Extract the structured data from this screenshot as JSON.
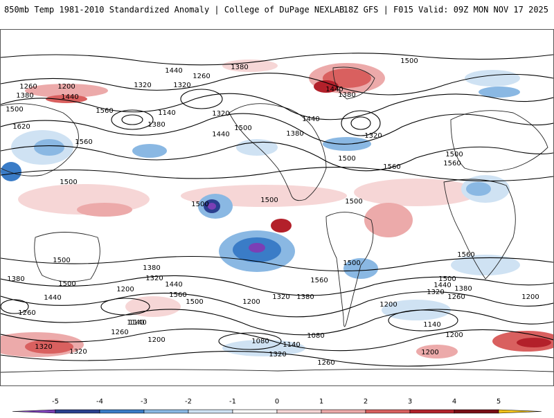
{
  "header": {
    "title": "850mb Temp 1981-2010 Standardized Anomaly | College of DuPage NEXLAB",
    "model_info": "18Z GFS | F015 Valid: 09Z MON NOV 17 2025"
  },
  "colors": {
    "neg5": "#7b3fb5",
    "neg4": "#2a3f8f",
    "neg3": "#3a7cc7",
    "neg2": "#8ab8e3",
    "neg1": "#cfe2f3",
    "zero": "#ffffff",
    "pos1": "#f6d6d6",
    "pos2": "#ecaaaa",
    "pos3": "#d9605f",
    "pos4": "#b3202a",
    "pos5": "#7a0d14",
    "extreme": "#f2c21a",
    "contour": "#000000",
    "coast": "#222222"
  },
  "legend": {
    "ticks": [
      "-5",
      "-4",
      "-3",
      "-2",
      "-1",
      "0",
      "1",
      "2",
      "3",
      "4",
      "5"
    ]
  },
  "contour_labels": [
    "1440",
    "1380",
    "1260",
    "1200",
    "1320",
    "1500",
    "1560",
    "1440",
    "1620",
    "1380",
    "1560",
    "1260",
    "1320",
    "1140",
    "1380",
    "1440",
    "1500",
    "1320",
    "1380",
    "1440",
    "1320",
    "1500",
    "1440",
    "1380",
    "1500",
    "1560",
    "1500",
    "1560",
    "1500",
    "1500",
    "1500",
    "1500",
    "1500",
    "1560",
    "1500",
    "1380",
    "1320",
    "1380",
    "1500",
    "1440",
    "1200",
    "1560",
    "1500",
    "1200",
    "1140",
    "1320",
    "1380",
    "1440",
    "1560",
    "1500",
    "1440",
    "1380",
    "1320",
    "1260",
    "1200",
    "1200",
    "1260",
    "1140",
    "1260",
    "1200",
    "1080",
    "1140",
    "1080",
    "1140",
    "1200",
    "1320",
    "1260",
    "1320",
    "1200",
    "1320"
  ]
}
